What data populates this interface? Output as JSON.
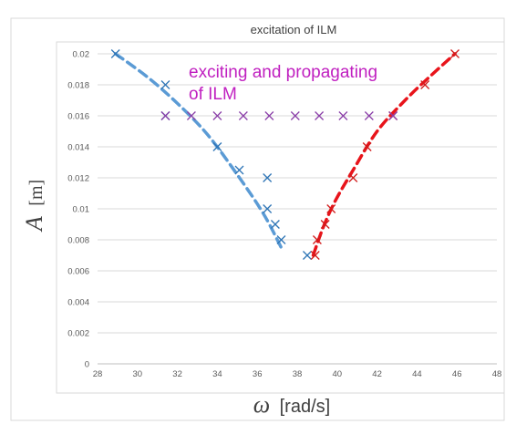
{
  "chart_data": {
    "type": "scatter",
    "title": "excitation of ILM",
    "xlabel_symbol": "ω",
    "xlabel_unit": "[rad/s]",
    "ylabel_symbol": "A",
    "ylabel_unit": "[m]",
    "xlim": [
      28,
      48
    ],
    "ylim": [
      0,
      0.02
    ],
    "x_ticks": [
      28,
      30,
      32,
      34,
      36,
      38,
      40,
      42,
      44,
      46,
      48
    ],
    "y_ticks": [
      0,
      0.002,
      0.004,
      0.006,
      0.008,
      0.01,
      0.012,
      0.014,
      0.016,
      0.018,
      0.02
    ],
    "x_tick_labels": [
      "28",
      "30",
      "32",
      "34",
      "36",
      "38",
      "40",
      "42",
      "44",
      "46",
      "48"
    ],
    "y_tick_labels": [
      "0",
      "0.002",
      "0.004",
      "0.006",
      "0.008",
      "0.01",
      "0.012",
      "0.014",
      "0.016",
      "0.018",
      "0.02"
    ],
    "grid": "horizontal",
    "annotation": {
      "line1": "exciting and propagating",
      "line2": "of ILM",
      "color": "#c020c0"
    },
    "series": [
      {
        "marker": "x",
        "color": "#2e75b6",
        "points": [
          [
            28.9,
            0.02
          ],
          [
            31.4,
            0.018
          ],
          [
            31.4,
            0.016
          ],
          [
            34.0,
            0.014
          ],
          [
            35.1,
            0.0125
          ],
          [
            36.5,
            0.012
          ],
          [
            36.5,
            0.01
          ],
          [
            36.9,
            0.009
          ],
          [
            37.2,
            0.008
          ],
          [
            38.5,
            0.007
          ]
        ]
      },
      {
        "marker": "x",
        "color": "#d11b1b",
        "points": [
          [
            38.9,
            0.007
          ],
          [
            39.0,
            0.008
          ],
          [
            39.4,
            0.009
          ],
          [
            39.7,
            0.01
          ],
          [
            40.8,
            0.012
          ],
          [
            41.5,
            0.014
          ],
          [
            42.8,
            0.016
          ],
          [
            44.4,
            0.018
          ],
          [
            45.9,
            0.02
          ]
        ]
      },
      {
        "marker": "x",
        "color": "#8a3ea8",
        "points": [
          [
            31.4,
            0.016
          ],
          [
            32.7,
            0.016
          ],
          [
            34.0,
            0.016
          ],
          [
            35.3,
            0.016
          ],
          [
            36.6,
            0.016
          ],
          [
            37.9,
            0.016
          ],
          [
            39.1,
            0.016
          ],
          [
            40.3,
            0.016
          ],
          [
            41.6,
            0.016
          ],
          [
            42.8,
            0.016
          ]
        ]
      }
    ],
    "trend_lines": [
      {
        "style": "dashed",
        "color": "#5b9bd5",
        "points": [
          [
            28.9,
            0.02
          ],
          [
            30.5,
            0.0185
          ],
          [
            32.0,
            0.0168
          ],
          [
            33.5,
            0.0148
          ],
          [
            35.0,
            0.0122
          ],
          [
            36.3,
            0.0097
          ],
          [
            37.2,
            0.0075
          ]
        ]
      },
      {
        "style": "dashed",
        "color": "#e8141b",
        "points": [
          [
            38.8,
            0.007
          ],
          [
            39.3,
            0.0088
          ],
          [
            39.9,
            0.0105
          ],
          [
            40.8,
            0.0125
          ],
          [
            42.0,
            0.015
          ],
          [
            43.4,
            0.017
          ],
          [
            44.7,
            0.0186
          ],
          [
            45.9,
            0.02
          ]
        ]
      }
    ]
  }
}
